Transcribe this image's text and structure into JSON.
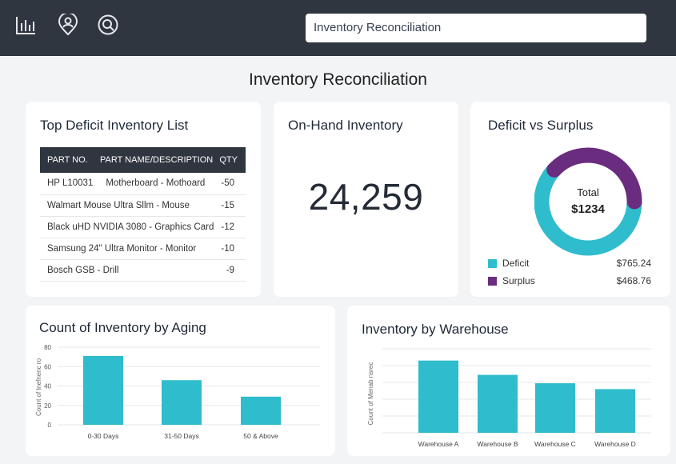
{
  "header": {
    "icons": [
      "bar-chart-icon",
      "user-location-icon",
      "search-icon"
    ],
    "search_value": "Inventory Reconciliation"
  },
  "page": {
    "title": "Inventory Reconciliation"
  },
  "deficit_list": {
    "title": "Top Deficit Inventory List",
    "columns": [
      "PART NO.",
      "PART NAME/DESCRIPTION",
      "QTY"
    ],
    "rows": [
      {
        "text": "HP L10031     Motherboard - Mothoard",
        "qty": "-50"
      },
      {
        "text": "Walmart Mouse Ultra Sllm - Mouse",
        "qty": "-15"
      },
      {
        "text": "Black uHD NVIDIA 3080 - Graphics Card",
        "qty": "-12"
      },
      {
        "text": "Samsung 24\" Ultra Monitor - Monitor",
        "qty": "-10"
      },
      {
        "text": "Bosch GSB - Drill",
        "qty": "-9"
      }
    ]
  },
  "on_hand": {
    "title": "On-Hand Inventory",
    "value": "24,259"
  },
  "deficit_surplus": {
    "title": "Deficit vs Surplus",
    "center_label": "Total",
    "center_value": "$1234",
    "legend": [
      {
        "label": "Deficit",
        "value": "$765.24",
        "color": "#2fbccc"
      },
      {
        "label": "Surplus",
        "value": "$468.76",
        "color": "#6a2c7e"
      }
    ],
    "chart_data": {
      "type": "pie",
      "categories": [
        "Deficit",
        "Surplus"
      ],
      "values": [
        765.24,
        468.76
      ],
      "colors": [
        "#2fbccc",
        "#6a2c7e"
      ]
    }
  },
  "aging": {
    "title": "Count of Inventory by Aging",
    "chart_data": {
      "type": "bar",
      "categories": [
        "0-30 Days",
        "31-50 Days",
        "50 & Above"
      ],
      "values": [
        71,
        46,
        29
      ],
      "ylabel": "Count of lnefnenc ro",
      "ylim": [
        0,
        80
      ],
      "yticks": [
        0,
        20,
        40,
        60,
        80
      ],
      "grid": true,
      "color": "#2fbccc"
    }
  },
  "warehouse": {
    "title": "Inventory by Warehouse",
    "chart_data": {
      "type": "bar",
      "categories": [
        "Warehouse A",
        "Warehouse B",
        "Warehouse C",
        "Warehouse D"
      ],
      "values": [
        86,
        69,
        59,
        52
      ],
      "ylabel": "Count of Menab nsrec",
      "ylim": [
        0,
        100
      ],
      "grid": true,
      "color": "#2fbccc"
    }
  }
}
